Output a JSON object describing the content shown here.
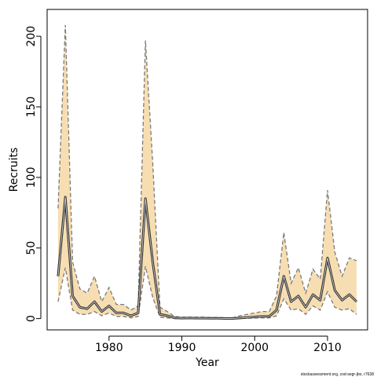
{
  "chart_data": {
    "type": "line",
    "xlabel": "Year",
    "ylabel": "Recruits",
    "xlim": [
      1971.5,
      2015.5
    ],
    "ylim": [
      -8,
      219
    ],
    "x_ticks": [
      1980,
      1990,
      2000,
      2010
    ],
    "y_ticks": [
      0,
      50,
      100,
      150,
      200
    ],
    "grid": false,
    "legend": "none",
    "footnote": "stockassessment.org, cod-segr-jbo, r7638",
    "colors": {
      "band_fill": "#f7deb2",
      "bound_line": "#7a7a7a",
      "estimate_line_outer": "#333333",
      "estimate_line_inner": "#dddddd"
    },
    "x": [
      1973,
      1974,
      1975,
      1976,
      1977,
      1978,
      1979,
      1980,
      1981,
      1982,
      1983,
      1984,
      1985,
      1986,
      1987,
      1988,
      1989,
      1990,
      1991,
      1992,
      1993,
      1994,
      1995,
      1996,
      1997,
      1998,
      1999,
      2000,
      2001,
      2002,
      2003,
      2004,
      2005,
      2006,
      2007,
      2008,
      2009,
      2010,
      2011,
      2012,
      2013,
      2014
    ],
    "series": [
      {
        "role": "estimate",
        "values": [
          30,
          86,
          16,
          8,
          7,
          12,
          5,
          9,
          4,
          4,
          2,
          4,
          85,
          40,
          3,
          2,
          0.5,
          0.3,
          0.4,
          0.3,
          0.3,
          0.2,
          0.2,
          0.1,
          0.1,
          0.4,
          0.8,
          1.2,
          1.5,
          1.6,
          6,
          30,
          12,
          16,
          8,
          17,
          13,
          43,
          20,
          13,
          17,
          12
        ]
      },
      {
        "role": "upper",
        "values": [
          78,
          208,
          40,
          21,
          18,
          30,
          12,
          22,
          10,
          10,
          6,
          9,
          197,
          110,
          8,
          5,
          1.5,
          1,
          1,
          1,
          1,
          0.8,
          0.8,
          0.6,
          0.6,
          2,
          3,
          4,
          5,
          5,
          16,
          61,
          25,
          36,
          18,
          35,
          28,
          91,
          47,
          30,
          43,
          41
        ]
      },
      {
        "role": "lower",
        "values": [
          12,
          36,
          6,
          3,
          3,
          5,
          2,
          4,
          1.5,
          1.5,
          0.5,
          1.5,
          37,
          15,
          1,
          0.5,
          0.1,
          0.1,
          0.1,
          0.1,
          0.1,
          0.05,
          0.05,
          0.02,
          0.02,
          0.1,
          0.2,
          0.4,
          0.5,
          0.5,
          2,
          14,
          6,
          7,
          3,
          9,
          6,
          19,
          8,
          6,
          7,
          3
        ]
      }
    ]
  }
}
